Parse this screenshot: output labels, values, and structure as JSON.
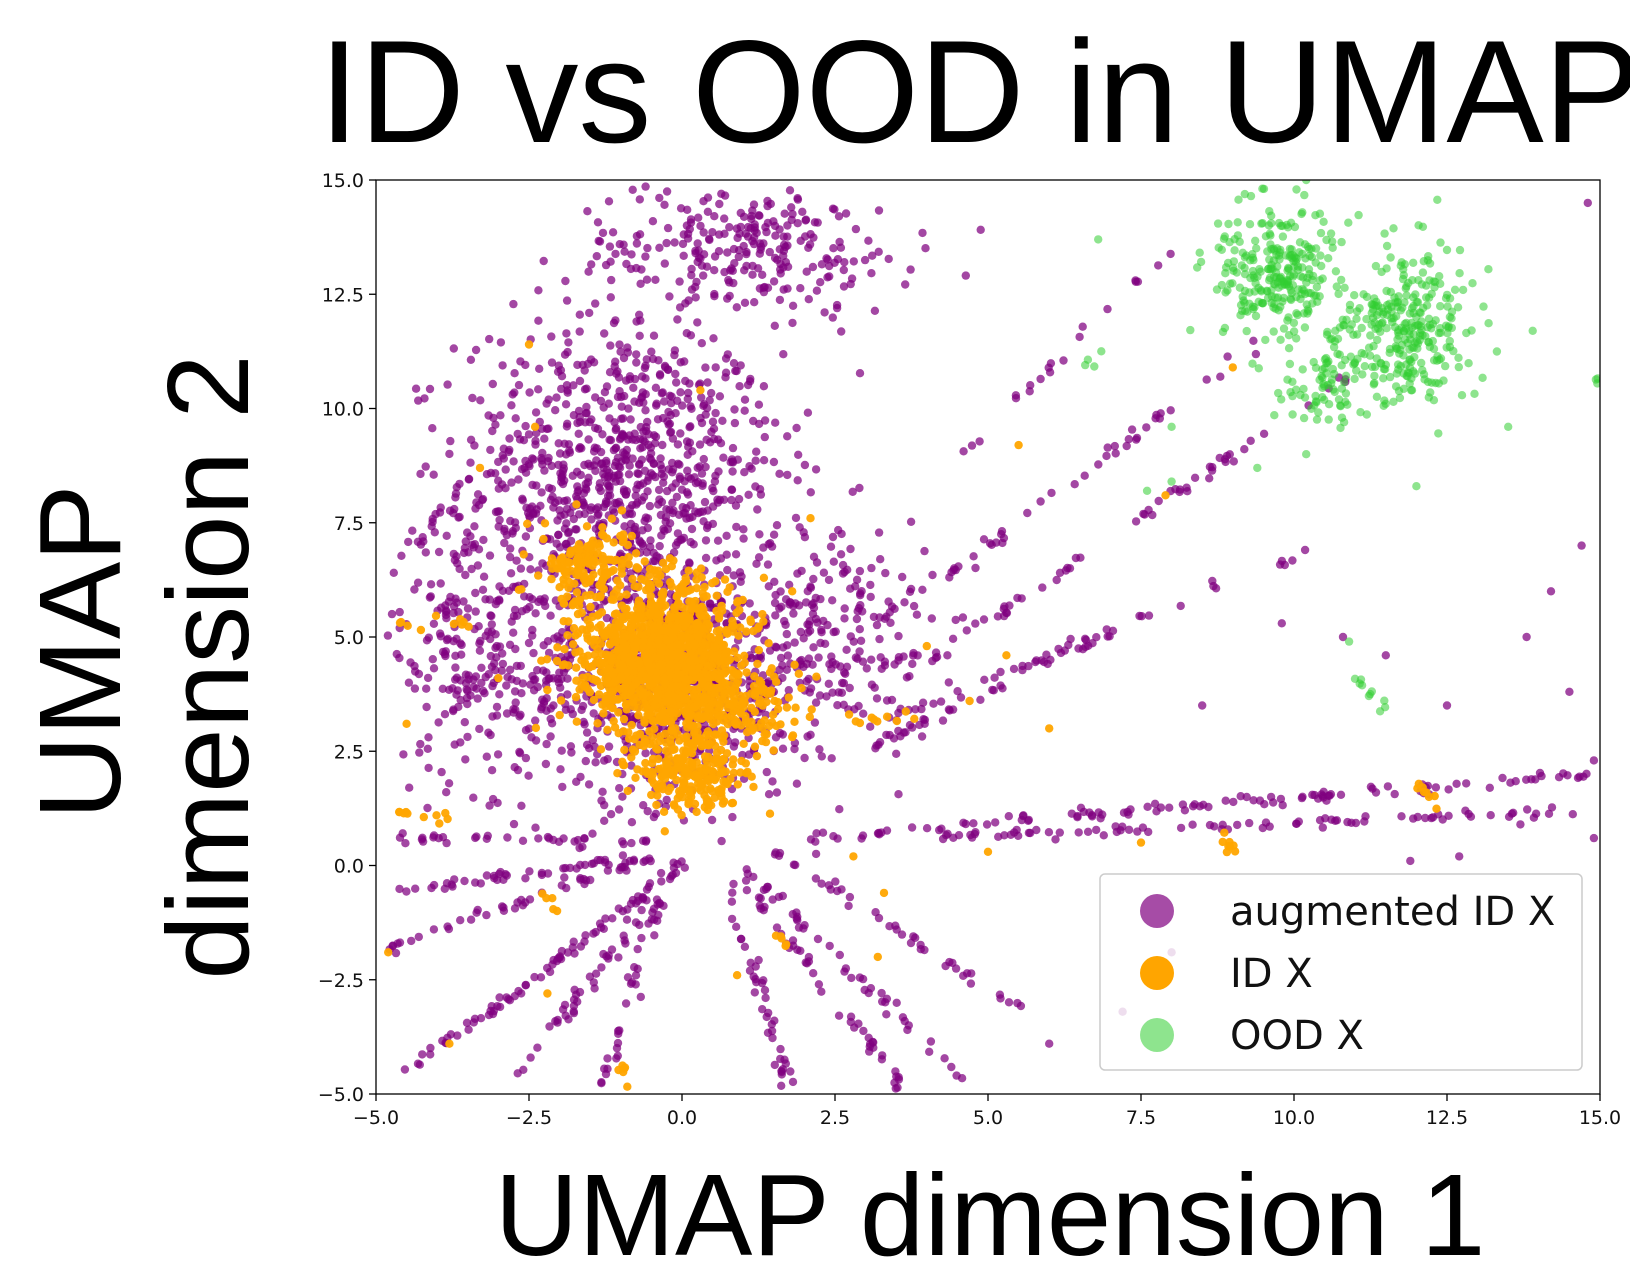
{
  "chart_data": {
    "type": "scatter",
    "title": "ID vs OOD in UMAP",
    "xlabel": "UMAP dimension 1",
    "ylabel_line1": "UMAP",
    "ylabel_line2": "dimension 2",
    "xlim": [
      -5.0,
      15.0
    ],
    "ylim": [
      -5.0,
      15.0
    ],
    "x_ticks": [
      -5.0,
      -2.5,
      0.0,
      2.5,
      5.0,
      7.5,
      10.0,
      12.5,
      15.0
    ],
    "x_tick_labels": [
      "−5.0",
      "−2.5",
      "0.0",
      "2.5",
      "5.0",
      "7.5",
      "10.0",
      "12.5",
      "15.0"
    ],
    "y_ticks": [
      -5.0,
      -2.5,
      0.0,
      2.5,
      5.0,
      7.5,
      10.0,
      12.5,
      15.0
    ],
    "y_tick_labels": [
      "−5.0",
      "−2.5",
      "0.0",
      "2.5",
      "5.0",
      "7.5",
      "10.0",
      "12.5",
      "15.0"
    ],
    "grid": false,
    "legend_position": "bottom-right",
    "series": [
      {
        "name": "augmented ID X",
        "color": "#800080",
        "clusters": [
          {
            "center": [
              -1.0,
              8.5
            ],
            "spread": [
              2.6,
              3.4
            ],
            "count": 900
          },
          {
            "center": [
              -0.3,
              4.0
            ],
            "spread": [
              2.4,
              2.6
            ],
            "count": 700
          },
          {
            "center": [
              -3.5,
              5.0
            ],
            "spread": [
              1.2,
              3.0
            ],
            "count": 220
          },
          {
            "center": [
              2.5,
              5.0
            ],
            "spread": [
              1.6,
              2.6
            ],
            "count": 220
          },
          {
            "center": [
              1.0,
              13.5
            ],
            "spread": [
              2.8,
              1.4
            ],
            "count": 260
          }
        ],
        "rays": [
          {
            "from": [
              0.0,
              0.0
            ],
            "to": [
              -4.8,
              -4.8
            ],
            "count": 45
          },
          {
            "from": [
              0.0,
              0.0
            ],
            "to": [
              -3.8,
              -3.9
            ],
            "count": 40
          },
          {
            "from": [
              0.0,
              0.0
            ],
            "to": [
              -2.7,
              -4.6
            ],
            "count": 40
          },
          {
            "from": [
              -0.2,
              0.0
            ],
            "to": [
              -1.3,
              -4.8
            ],
            "count": 35
          },
          {
            "from": [
              0.6,
              0.0
            ],
            "to": [
              1.8,
              -4.9
            ],
            "count": 40
          },
          {
            "from": [
              0.8,
              0.0
            ],
            "to": [
              3.6,
              -4.8
            ],
            "count": 45
          },
          {
            "from": [
              1.0,
              0.0
            ],
            "to": [
              4.6,
              -4.7
            ],
            "count": 45
          },
          {
            "from": [
              1.5,
              0.3
            ],
            "to": [
              5.6,
              -3.2
            ],
            "count": 40
          },
          {
            "from": [
              -0.5,
              0.2
            ],
            "to": [
              -4.8,
              -0.6
            ],
            "count": 45
          },
          {
            "from": [
              -0.5,
              0.2
            ],
            "to": [
              -4.8,
              -1.8
            ],
            "count": 45
          },
          {
            "from": [
              -0.5,
              0.5
            ],
            "to": [
              -4.8,
              0.6
            ],
            "count": 35
          },
          {
            "from": [
              2.0,
              0.6
            ],
            "to": [
              14.9,
              2.0
            ],
            "count": 110
          },
          {
            "from": [
              4.0,
              0.6
            ],
            "to": [
              14.9,
              1.2
            ],
            "count": 80
          },
          {
            "from": [
              3.0,
              2.5
            ],
            "to": [
              7.5,
              5.5
            ],
            "count": 45
          },
          {
            "from": [
              3.5,
              4.0
            ],
            "to": [
              11.0,
              10.8
            ],
            "count": 60
          },
          {
            "from": [
              4.0,
              6.0
            ],
            "to": [
              9.5,
              11.5
            ],
            "count": 40
          },
          {
            "from": [
              3.0,
              3.0
            ],
            "to": [
              10.5,
              7.0
            ],
            "count": 35
          },
          {
            "from": [
              4.5,
              9.0
            ],
            "to": [
              8.0,
              13.5
            ],
            "count": 20
          }
        ],
        "points": [
          [
            13.8,
            5.0
          ],
          [
            14.7,
            7.0
          ],
          [
            14.2,
            6.0
          ],
          [
            12.5,
            3.5
          ],
          [
            14.8,
            14.5
          ],
          [
            14.5,
            3.8
          ],
          [
            10.8,
            5.0
          ],
          [
            9.8,
            5.3
          ],
          [
            11.5,
            4.6
          ],
          [
            8.5,
            3.5
          ],
          [
            14.9,
            0.6
          ],
          [
            13.7,
            0.9
          ],
          [
            12.7,
            0.2
          ],
          [
            8.0,
            -1.9
          ],
          [
            7.2,
            -3.2
          ],
          [
            6.0,
            -3.9
          ],
          [
            14.9,
            2.3
          ],
          [
            12.8,
            1.2
          ],
          [
            13.2,
            1.7
          ],
          [
            11.9,
            0.1
          ]
        ]
      },
      {
        "name": "ID X",
        "color": "#FFA500",
        "clusters": [
          {
            "center": [
              -0.3,
              4.5
            ],
            "spread": [
              1.3,
              1.6
            ],
            "count": 1300
          },
          {
            "center": [
              0.2,
              2.0
            ],
            "spread": [
              0.9,
              0.9
            ],
            "count": 220
          },
          {
            "center": [
              -1.5,
              6.5
            ],
            "spread": [
              0.8,
              1.0
            ],
            "count": 150
          },
          {
            "center": [
              0.8,
              3.5
            ],
            "spread": [
              1.2,
              0.9
            ],
            "count": 150
          }
        ],
        "rays": [
          {
            "from": [
              -4.8,
              5.3
            ],
            "to": [
              -3.5,
              5.3
            ],
            "count": 10
          },
          {
            "from": [
              -4.6,
              1.2
            ],
            "to": [
              -3.8,
              1.0
            ],
            "count": 10
          },
          {
            "from": [
              2.8,
              3.2
            ],
            "to": [
              3.8,
              3.2
            ],
            "count": 10
          },
          {
            "from": [
              -1.0,
              -4.2
            ],
            "to": [
              -0.9,
              -4.8
            ],
            "count": 6
          },
          {
            "from": [
              12.0,
              1.8
            ],
            "to": [
              12.3,
              1.4
            ],
            "count": 8
          },
          {
            "from": [
              8.8,
              0.8
            ],
            "to": [
              9.0,
              0.3
            ],
            "count": 8
          },
          {
            "from": [
              -2.2,
              -0.6
            ],
            "to": [
              -2.0,
              -1.0
            ],
            "count": 5
          },
          {
            "from": [
              1.5,
              -1.5
            ],
            "to": [
              1.7,
              -1.8
            ],
            "count": 5
          }
        ],
        "points": [
          [
            -4.8,
            -1.9
          ],
          [
            -3.8,
            -3.9
          ],
          [
            -2.2,
            -2.8
          ],
          [
            -2.5,
            11.4
          ],
          [
            -2.4,
            9.6
          ],
          [
            -3.3,
            8.7
          ],
          [
            5.5,
            9.2
          ],
          [
            7.9,
            8.1
          ],
          [
            4.7,
            3.6
          ],
          [
            6.0,
            3.0
          ],
          [
            5.3,
            4.6
          ],
          [
            3.2,
            -2.0
          ],
          [
            2.8,
            0.2
          ],
          [
            5.0,
            0.3
          ],
          [
            7.5,
            0.5
          ],
          [
            0.3,
            10.4
          ],
          [
            9.0,
            10.9
          ],
          [
            4.0,
            4.8
          ],
          [
            2.1,
            7.6
          ],
          [
            1.8,
            6.0
          ],
          [
            -1.3,
            7.4
          ],
          [
            0.9,
            -2.4
          ],
          [
            3.3,
            -0.6
          ],
          [
            -4.5,
            3.1
          ],
          [
            -3.0,
            4.1
          ]
        ]
      },
      {
        "name": "OOD X",
        "color": "#32CD32",
        "clusters": [
          {
            "center": [
              9.7,
              13.0
            ],
            "spread": [
              1.0,
              1.4
            ],
            "count": 260
          },
          {
            "center": [
              11.8,
              11.8
            ],
            "spread": [
              1.1,
              1.6
            ],
            "count": 300
          },
          {
            "center": [
              10.5,
              10.5
            ],
            "spread": [
              0.8,
              0.9
            ],
            "count": 70
          }
        ],
        "rays": [
          {
            "from": [
              11.0,
              4.2
            ],
            "to": [
              11.5,
              3.4
            ],
            "count": 10
          },
          {
            "from": [
              6.6,
              10.9
            ],
            "to": [
              6.8,
              11.2
            ],
            "count": 4
          },
          {
            "from": [
              15.0,
              10.6
            ],
            "to": [
              15.0,
              10.8
            ],
            "count": 3
          }
        ],
        "points": [
          [
            10.9,
            4.9
          ],
          [
            7.6,
            8.2
          ],
          [
            8.0,
            8.4
          ],
          [
            12.0,
            8.3
          ],
          [
            10.2,
            9.0
          ],
          [
            9.4,
            8.7
          ],
          [
            6.8,
            13.7
          ],
          [
            8.0,
            9.6
          ],
          [
            13.5,
            9.6
          ],
          [
            13.9,
            11.7
          ],
          [
            10.2,
            15.0
          ]
        ]
      }
    ]
  }
}
